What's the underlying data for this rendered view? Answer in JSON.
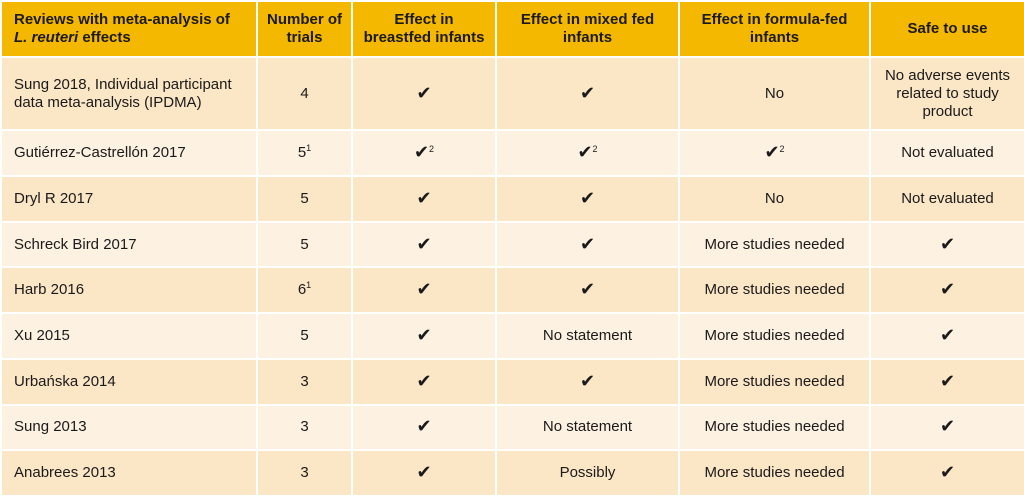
{
  "header": {
    "col0_line1": "Reviews with meta-analysis of",
    "col0_italic": "L. reuteri",
    "col0_line2_rest": " effects",
    "col1": "Number of trials",
    "col2": "Effect in breastfed infants",
    "col3": "Effect in mixed fed infants",
    "col4": "Effect in formula-fed infants",
    "col5": "Safe to use"
  },
  "rows": [
    {
      "review": "Sung 2018, Individual participant data meta-analysis (IPDMA)",
      "trials": "4",
      "trials_sup": "",
      "breastfed": "✔",
      "breastfed_sup": "",
      "mixed": "✔",
      "mixed_sup": "",
      "formula": "No",
      "formula_sup": "",
      "safe": "No adverse events related to study product"
    },
    {
      "review": "Gutiérrez-Castrellón 2017",
      "trials": "5",
      "trials_sup": "1",
      "breastfed": "✔",
      "breastfed_sup": "2",
      "mixed": "✔",
      "mixed_sup": "2",
      "formula": "✔",
      "formula_sup": "2",
      "safe": "Not evaluated"
    },
    {
      "review": "Dryl R 2017",
      "trials": "5",
      "trials_sup": "",
      "breastfed": "✔",
      "breastfed_sup": "",
      "mixed": "✔",
      "mixed_sup": "",
      "formula": "No",
      "formula_sup": "",
      "safe": "Not evaluated"
    },
    {
      "review": "Schreck Bird 2017",
      "trials": "5",
      "trials_sup": "",
      "breastfed": "✔",
      "breastfed_sup": "",
      "mixed": "✔",
      "mixed_sup": "",
      "formula": "More studies needed",
      "formula_sup": "",
      "safe": "✔"
    },
    {
      "review": "Harb 2016",
      "trials": "6",
      "trials_sup": "1",
      "breastfed": "✔",
      "breastfed_sup": "",
      "mixed": "✔",
      "mixed_sup": "",
      "formula": "More studies needed",
      "formula_sup": "",
      "safe": "✔"
    },
    {
      "review": "Xu 2015",
      "trials": "5",
      "trials_sup": "",
      "breastfed": "✔",
      "breastfed_sup": "",
      "mixed": "No statement",
      "mixed_sup": "",
      "formula": "More studies needed",
      "formula_sup": "",
      "safe": "✔"
    },
    {
      "review": "Urbańska 2014",
      "trials": "3",
      "trials_sup": "",
      "breastfed": "✔",
      "breastfed_sup": "",
      "mixed": "✔",
      "mixed_sup": "",
      "formula": "More studies needed",
      "formula_sup": "",
      "safe": "✔"
    },
    {
      "review": "Sung 2013",
      "trials": "3",
      "trials_sup": "",
      "breastfed": "✔",
      "breastfed_sup": "",
      "mixed": "No statement",
      "mixed_sup": "",
      "formula": "More studies needed",
      "formula_sup": "",
      "safe": "✔"
    },
    {
      "review": "Anabrees 2013",
      "trials": "3",
      "trials_sup": "",
      "breastfed": "✔",
      "breastfed_sup": "",
      "mixed": "Possibly",
      "mixed_sup": "",
      "formula": "More studies needed",
      "formula_sup": "",
      "safe": "✔"
    }
  ],
  "colors": {
    "header": "#f5b800",
    "row_dark": "#fbe6c6",
    "row_light": "#fdf1e2"
  }
}
